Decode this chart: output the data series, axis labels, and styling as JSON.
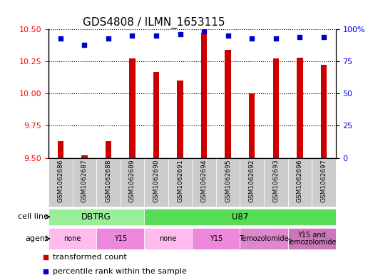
{
  "title": "GDS4808 / ILMN_1653115",
  "samples": [
    "GSM1062686",
    "GSM1062687",
    "GSM1062688",
    "GSM1062689",
    "GSM1062690",
    "GSM1062691",
    "GSM1062694",
    "GSM1062695",
    "GSM1062692",
    "GSM1062693",
    "GSM1062696",
    "GSM1062697"
  ],
  "transformed_count": [
    9.63,
    9.52,
    9.63,
    10.27,
    10.17,
    10.1,
    10.47,
    10.34,
    10.0,
    10.27,
    10.28,
    10.22
  ],
  "percentile_rank": [
    93,
    88,
    93,
    95,
    95,
    96,
    98,
    95,
    93,
    93,
    94,
    94
  ],
  "ylim_left": [
    9.5,
    10.5
  ],
  "ylim_right": [
    0,
    100
  ],
  "yticks_left": [
    9.5,
    9.75,
    10.0,
    10.25,
    10.5
  ],
  "yticks_right": [
    0,
    25,
    50,
    75,
    100
  ],
  "bar_color": "#cc0000",
  "dot_color": "#0000cc",
  "cell_line_groups": [
    {
      "label": "DBTRG",
      "start": 0,
      "end": 3,
      "color": "#99ee99"
    },
    {
      "label": "U87",
      "start": 4,
      "end": 11,
      "color": "#55dd55"
    }
  ],
  "agent_groups": [
    {
      "label": "none",
      "start": 0,
      "end": 1,
      "color": "#ffbbee"
    },
    {
      "label": "Y15",
      "start": 2,
      "end": 3,
      "color": "#ee88dd"
    },
    {
      "label": "none",
      "start": 4,
      "end": 5,
      "color": "#ffbbee"
    },
    {
      "label": "Y15",
      "start": 6,
      "end": 7,
      "color": "#ee88dd"
    },
    {
      "label": "Temozolomide",
      "start": 8,
      "end": 9,
      "color": "#dd88cc"
    },
    {
      "label": "Y15 and\nTemozolomide",
      "start": 10,
      "end": 11,
      "color": "#cc77bb"
    }
  ],
  "legend_bar_label": "transformed count",
  "legend_dot_label": "percentile rank within the sample",
  "cell_line_row_label": "cell line",
  "agent_row_label": "agent",
  "bar_width": 0.25,
  "title_fontsize": 11,
  "axis_fontsize": 8,
  "sample_fontsize": 6.5,
  "row_label_fontsize": 8,
  "group_label_fontsize": 8.5,
  "legend_fontsize": 8,
  "xtick_gray": "#cccccc",
  "border_color": "#000000"
}
